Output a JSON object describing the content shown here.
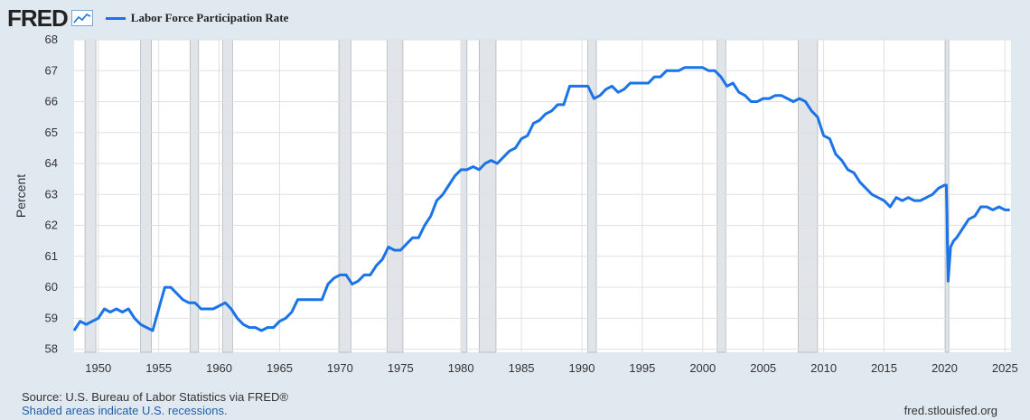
{
  "header": {
    "logo_text": "FRED",
    "logo_icon": "line-chart-icon",
    "legend_label": "Labor Force Participation Rate",
    "legend_color": "#1a73e8"
  },
  "footer": {
    "source": "Source: U.S. Bureau of Labor Statistics via FRED®",
    "recession_note": "Shaded areas indicate U.S. recessions.",
    "site": "fred.stlouisfed.org"
  },
  "colors": {
    "background": "#e1e9f0",
    "plot_background": "#ffffff",
    "grid": "#e0e0e0",
    "recession_shade": "#e1e5e9",
    "line": "#1a73e8"
  },
  "chart_data": {
    "type": "line",
    "title": "",
    "ylabel": "Percent",
    "xlabel": "",
    "xlim": [
      1948.0,
      2025.5
    ],
    "ylim": [
      57.9,
      68
    ],
    "grid": true,
    "legend_position": "top-left",
    "x_ticks": [
      1950,
      1955,
      1960,
      1965,
      1970,
      1975,
      1980,
      1985,
      1990,
      1995,
      2000,
      2005,
      2010,
      2015,
      2020,
      2025
    ],
    "y_ticks": [
      58,
      59,
      60,
      61,
      62,
      63,
      64,
      65,
      66,
      67,
      68
    ],
    "recessions": [
      [
        1948.9,
        1949.8
      ],
      [
        1953.5,
        1954.4
      ],
      [
        1957.6,
        1958.3
      ],
      [
        1960.3,
        1961.1
      ],
      [
        1969.9,
        1970.9
      ],
      [
        1973.9,
        1975.2
      ],
      [
        1980.0,
        1980.5
      ],
      [
        1981.5,
        1982.9
      ],
      [
        1990.5,
        1991.2
      ],
      [
        2001.2,
        2001.9
      ],
      [
        2007.9,
        2009.5
      ],
      [
        2020.1,
        2020.35
      ]
    ],
    "series": [
      {
        "name": "Labor Force Participation Rate",
        "x": [
          1948.0,
          1948.5,
          1949.0,
          1949.5,
          1950.0,
          1950.5,
          1951.0,
          1951.5,
          1952.0,
          1952.5,
          1953.0,
          1953.5,
          1954.0,
          1954.5,
          1955.0,
          1955.5,
          1956.0,
          1956.5,
          1957.0,
          1957.5,
          1958.0,
          1958.5,
          1959.0,
          1959.5,
          1960.0,
          1960.5,
          1961.0,
          1961.5,
          1962.0,
          1962.5,
          1963.0,
          1963.5,
          1964.0,
          1964.5,
          1965.0,
          1965.5,
          1966.0,
          1966.5,
          1967.0,
          1967.5,
          1968.0,
          1968.5,
          1969.0,
          1969.5,
          1970.0,
          1970.5,
          1971.0,
          1971.5,
          1972.0,
          1972.5,
          1973.0,
          1973.5,
          1974.0,
          1974.5,
          1975.0,
          1975.5,
          1976.0,
          1976.5,
          1977.0,
          1977.5,
          1978.0,
          1978.5,
          1979.0,
          1979.5,
          1980.0,
          1980.5,
          1981.0,
          1981.5,
          1982.0,
          1982.5,
          1983.0,
          1983.5,
          1984.0,
          1984.5,
          1985.0,
          1985.5,
          1986.0,
          1986.5,
          1987.0,
          1987.5,
          1988.0,
          1988.5,
          1989.0,
          1989.5,
          1990.0,
          1990.5,
          1991.0,
          1991.5,
          1992.0,
          1992.5,
          1993.0,
          1993.5,
          1994.0,
          1994.5,
          1995.0,
          1995.5,
          1996.0,
          1996.5,
          1997.0,
          1997.5,
          1998.0,
          1998.5,
          1999.0,
          1999.5,
          2000.0,
          2000.5,
          2001.0,
          2001.5,
          2002.0,
          2002.5,
          2003.0,
          2003.5,
          2004.0,
          2004.5,
          2005.0,
          2005.5,
          2006.0,
          2006.5,
          2007.0,
          2007.5,
          2008.0,
          2008.5,
          2009.0,
          2009.5,
          2010.0,
          2010.5,
          2011.0,
          2011.5,
          2012.0,
          2012.5,
          2013.0,
          2013.5,
          2014.0,
          2014.5,
          2015.0,
          2015.5,
          2016.0,
          2016.5,
          2017.0,
          2017.5,
          2018.0,
          2018.5,
          2019.0,
          2019.5,
          2020.0,
          2020.15,
          2020.3,
          2020.5,
          2020.75,
          2021.0,
          2021.5,
          2022.0,
          2022.5,
          2023.0,
          2023.5,
          2024.0,
          2024.5,
          2025.0,
          2025.4
        ],
        "values": [
          58.6,
          58.9,
          58.8,
          58.9,
          59.0,
          59.3,
          59.2,
          59.3,
          59.2,
          59.3,
          59.0,
          58.8,
          58.7,
          58.6,
          59.3,
          60.0,
          60.0,
          59.8,
          59.6,
          59.5,
          59.5,
          59.3,
          59.3,
          59.3,
          59.4,
          59.5,
          59.3,
          59.0,
          58.8,
          58.7,
          58.7,
          58.6,
          58.7,
          58.7,
          58.9,
          59.0,
          59.2,
          59.6,
          59.6,
          59.6,
          59.6,
          59.6,
          60.1,
          60.3,
          60.4,
          60.4,
          60.1,
          60.2,
          60.4,
          60.4,
          60.7,
          60.9,
          61.3,
          61.2,
          61.2,
          61.4,
          61.6,
          61.6,
          62.0,
          62.3,
          62.8,
          63.0,
          63.3,
          63.6,
          63.8,
          63.8,
          63.9,
          63.8,
          64.0,
          64.1,
          64.0,
          64.2,
          64.4,
          64.5,
          64.8,
          64.9,
          65.3,
          65.4,
          65.6,
          65.7,
          65.9,
          65.9,
          66.5,
          66.5,
          66.5,
          66.5,
          66.1,
          66.2,
          66.4,
          66.5,
          66.3,
          66.4,
          66.6,
          66.6,
          66.6,
          66.6,
          66.8,
          66.8,
          67.0,
          67.0,
          67.0,
          67.1,
          67.1,
          67.1,
          67.1,
          67.0,
          67.0,
          66.8,
          66.5,
          66.6,
          66.3,
          66.2,
          66.0,
          66.0,
          66.1,
          66.1,
          66.2,
          66.2,
          66.1,
          66.0,
          66.1,
          66.0,
          65.7,
          65.5,
          64.9,
          64.8,
          64.3,
          64.1,
          63.8,
          63.7,
          63.4,
          63.2,
          63.0,
          62.9,
          62.8,
          62.6,
          62.9,
          62.8,
          62.9,
          62.8,
          62.8,
          62.9,
          63.0,
          63.2,
          63.3,
          63.3,
          60.2,
          61.3,
          61.5,
          61.6,
          61.9,
          62.2,
          62.3,
          62.6,
          62.6,
          62.5,
          62.6,
          62.5,
          62.5
        ]
      }
    ]
  }
}
